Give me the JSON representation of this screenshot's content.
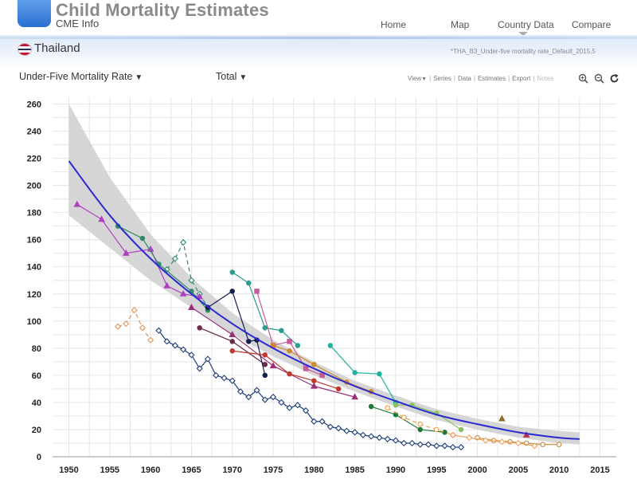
{
  "app": {
    "title": "Child Mortality Estimates",
    "subtitle": "CME Info"
  },
  "nav": {
    "items": [
      {
        "label": "Home"
      },
      {
        "label": "Map"
      },
      {
        "label": "Country Data"
      },
      {
        "label": "Compare"
      }
    ]
  },
  "country": {
    "name": "Thailand",
    "file": "*THA_B3_Under-five mortality rate_Default_2015.5"
  },
  "controls": {
    "indicator": "Under-Five Mortality Rate",
    "sex": "Total"
  },
  "toolbar": {
    "view": "View",
    "series": "Series",
    "data": "Data",
    "estimates": "Estimates",
    "export": "Export",
    "notes": "Notes"
  },
  "colors": {
    "estimate": "#2a2ad0",
    "band": "#cfcfcf",
    "grid": "#e6e6e6"
  },
  "icons": {
    "zoom_in": "zoom-in-icon",
    "zoom_out": "zoom-out-icon",
    "refresh": "refresh-icon"
  },
  "chart_data": {
    "type": "line",
    "title": "",
    "xlabel": "",
    "ylabel": "",
    "xlim": [
      1948,
      2017
    ],
    "ylim": [
      0,
      265
    ],
    "x_ticks": [
      "1950",
      "1955",
      "1960",
      "1965",
      "1970",
      "1975",
      "1980",
      "1985",
      "1990",
      "1995",
      "2000",
      "2005",
      "2010",
      "2015"
    ],
    "y_ticks": [
      "0",
      "20",
      "40",
      "60",
      "80",
      "100",
      "120",
      "140",
      "160",
      "180",
      "200",
      "220",
      "240",
      "260"
    ],
    "grid": true,
    "estimate": {
      "x": [
        1950,
        1955,
        1960,
        1965,
        1970,
        1975,
        1980,
        1985,
        1990,
        1995,
        2000,
        2005,
        2010,
        2012.5
      ],
      "y": [
        218,
        178,
        146,
        120,
        98,
        80,
        65,
        52,
        41,
        31,
        24,
        18,
        14,
        13
      ]
    },
    "band": {
      "x": [
        1950,
        1955,
        1960,
        1965,
        1970,
        1975,
        1980,
        1985,
        1990,
        1995,
        2000,
        2005,
        2010,
        2012.5
      ],
      "upper": [
        260,
        206,
        164,
        132,
        106,
        86,
        70,
        56,
        45,
        35,
        28,
        22,
        19,
        18
      ],
      "lower": [
        178,
        154,
        130,
        110,
        90,
        74,
        60,
        48,
        37,
        27,
        20,
        14,
        10,
        9
      ]
    },
    "series": [
      {
        "color": "#1f3f7a",
        "marker": "diamond",
        "hollow": true,
        "dashed": false,
        "x": [
          1961,
          1962,
          1963,
          1964,
          1965,
          1966,
          1967,
          1968,
          1969,
          1970,
          1971,
          1972,
          1973,
          1974,
          1975,
          1976,
          1977,
          1978,
          1979,
          1980,
          1981,
          1982,
          1983,
          1984,
          1985,
          1986,
          1987,
          1988,
          1989,
          1990,
          1991,
          1992,
          1993,
          1994,
          1995,
          1996,
          1997,
          1998
        ],
        "y": [
          93,
          85,
          82,
          79,
          75,
          65,
          72,
          60,
          58,
          56,
          48,
          44,
          49,
          42,
          44,
          40,
          36,
          38,
          34,
          26,
          26,
          22,
          21,
          19,
          18,
          16,
          15,
          14,
          13,
          12,
          10,
          10,
          9,
          9,
          8,
          8,
          7,
          7
        ]
      },
      {
        "color": "#e0955a",
        "marker": "diamond",
        "hollow": true,
        "dashed": true,
        "x": [
          1956,
          1957,
          1958,
          1959,
          1960
        ],
        "y": [
          96,
          98,
          108,
          95,
          86
        ]
      },
      {
        "color": "#2e8b6b",
        "marker": "diamond",
        "hollow": true,
        "dashed": true,
        "x": [
          1962,
          1963,
          1964,
          1965,
          1966,
          1967
        ],
        "y": [
          138,
          146,
          158,
          130,
          120,
          110
        ]
      },
      {
        "color": "#b040c0",
        "marker": "triangle",
        "hollow": false,
        "dashed": false,
        "x": [
          1951,
          1954,
          1957,
          1960,
          1962,
          1964,
          1966
        ],
        "y": [
          186,
          175,
          150,
          153,
          126,
          120,
          118
        ]
      },
      {
        "color": "#2e8b6b",
        "marker": "circle",
        "hollow": false,
        "dashed": false,
        "x": [
          1956,
          1959,
          1961,
          1965,
          1967
        ],
        "y": [
          170,
          161,
          142,
          122,
          108
        ]
      },
      {
        "color": "#9a2f7a",
        "marker": "triangle",
        "hollow": false,
        "dashed": false,
        "x": [
          1965,
          1970,
          1975,
          1980,
          1985
        ],
        "y": [
          110,
          90,
          67,
          52,
          44
        ]
      },
      {
        "color": "#6a2a4a",
        "marker": "circle",
        "hollow": false,
        "dashed": false,
        "x": [
          1966,
          1970,
          1974
        ],
        "y": [
          95,
          85,
          68
        ]
      },
      {
        "color": "#12204a",
        "marker": "circle",
        "hollow": false,
        "dashed": false,
        "x": [
          1967,
          1970,
          1972,
          1973,
          1974
        ],
        "y": [
          110,
          122,
          85,
          86,
          60
        ]
      },
      {
        "color": "#2a9d8f",
        "marker": "circle",
        "hollow": false,
        "dashed": false,
        "x": [
          1970,
          1972,
          1974,
          1976,
          1978
        ],
        "y": [
          136,
          128,
          95,
          93,
          82
        ]
      },
      {
        "color": "#c0392b",
        "marker": "circle",
        "hollow": false,
        "dashed": false,
        "x": [
          1970,
          1974,
          1977,
          1980,
          1983
        ],
        "y": [
          78,
          75,
          61,
          56,
          50
        ]
      },
      {
        "color": "#c85a9a",
        "marker": "square",
        "hollow": false,
        "dashed": false,
        "x": [
          1973,
          1975,
          1977,
          1979,
          1981
        ],
        "y": [
          122,
          82,
          85,
          65,
          60
        ]
      },
      {
        "color": "#d08a2a",
        "marker": "circle",
        "hollow": false,
        "dashed": false,
        "x": [
          1975,
          1977,
          1980,
          1984,
          1987
        ],
        "y": [
          82,
          78,
          68,
          55,
          48
        ]
      },
      {
        "color": "#20b2a0",
        "marker": "circle",
        "hollow": false,
        "dashed": false,
        "x": [
          1982,
          1985,
          1988,
          1990
        ],
        "y": [
          82,
          62,
          61,
          40
        ]
      },
      {
        "color": "#1e7a3a",
        "marker": "circle",
        "hollow": false,
        "dashed": false,
        "x": [
          1987,
          1990,
          1993,
          1996
        ],
        "y": [
          37,
          31,
          20,
          18
        ]
      },
      {
        "color": "#e8a040",
        "marker": "circle",
        "hollow": true,
        "dashed": true,
        "x": [
          1989,
          1991,
          1993,
          1995,
          1997
        ],
        "y": [
          36,
          29,
          24,
          20,
          16
        ]
      },
      {
        "color": "#8bc060",
        "marker": "circle",
        "hollow": false,
        "dashed": false,
        "x": [
          1990,
          1992,
          1995,
          1998
        ],
        "y": [
          38,
          38,
          32,
          20
        ]
      },
      {
        "color": "#c68a3a",
        "marker": "circle",
        "hollow": true,
        "dashed": false,
        "x": [
          2000,
          2002,
          2004,
          2006,
          2008,
          2010
        ],
        "y": [
          14,
          12,
          11,
          10,
          9,
          9
        ]
      },
      {
        "color": "#f0a060",
        "marker": "diamond",
        "hollow": true,
        "dashed": false,
        "x": [
          1997,
          1999,
          2001,
          2003,
          2005,
          2007
        ],
        "y": [
          16,
          14,
          12,
          11,
          10,
          8
        ]
      },
      {
        "color": "#8a6a2a",
        "marker": "triangle",
        "hollow": false,
        "dashed": false,
        "x": [
          2003
        ],
        "y": [
          28
        ]
      },
      {
        "color": "#c0304a",
        "marker": "triangle",
        "hollow": false,
        "dashed": false,
        "x": [
          2006
        ],
        "y": [
          16
        ]
      }
    ]
  }
}
